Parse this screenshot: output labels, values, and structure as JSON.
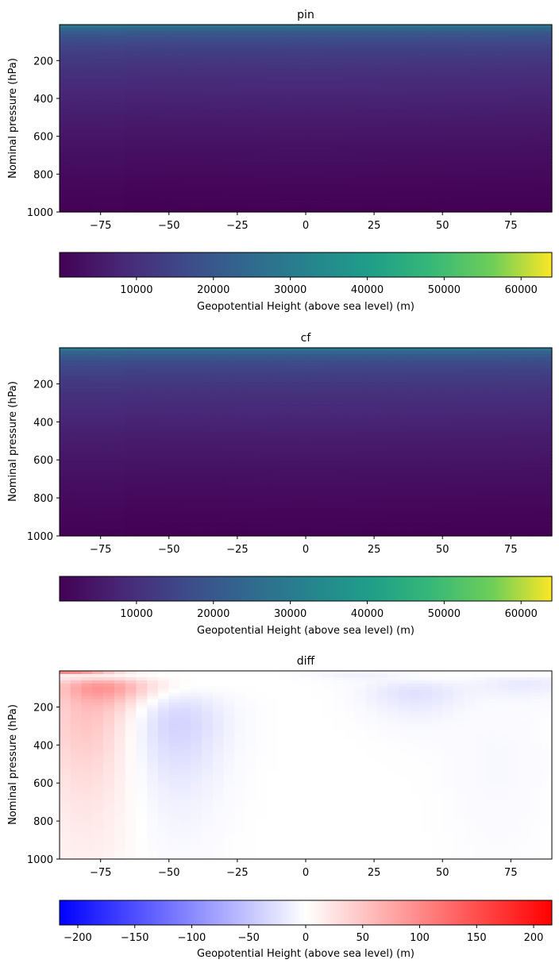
{
  "chart_data": [
    {
      "type": "heatmap",
      "title": "pin",
      "xlabel": "",
      "ylabel": "Nominal pressure (hPa)",
      "xlim": [
        -90,
        90
      ],
      "ylim": [
        1000,
        10
      ],
      "y_inverted": true,
      "x_ticks": [
        "−75",
        "−50",
        "−25",
        "0",
        "25",
        "50",
        "75"
      ],
      "x_tick_values": [
        -75,
        -50,
        -25,
        0,
        25,
        50,
        75
      ],
      "y_ticks": [
        "200",
        "400",
        "600",
        "800",
        "1000"
      ],
      "y_tick_values": [
        200,
        400,
        600,
        800,
        1000
      ],
      "colormap": "viridis",
      "colorbar": {
        "label": "Geopotential Height (above sea level) (m)",
        "range": [
          0,
          64000
        ],
        "ticks": [
          "10000",
          "20000",
          "30000",
          "40000",
          "50000",
          "60000"
        ],
        "tick_values": [
          10000,
          20000,
          30000,
          40000,
          50000,
          60000
        ]
      },
      "profile": {
        "pressure_hPa": [
          10,
          30,
          50,
          100,
          200,
          400,
          600,
          800,
          1000
        ],
        "height_m": [
          31000,
          24000,
          20600,
          16200,
          11800,
          7200,
          4200,
          1900,
          100
        ]
      }
    },
    {
      "type": "heatmap",
      "title": "cf",
      "xlabel": "",
      "ylabel": "Nominal pressure (hPa)",
      "xlim": [
        -90,
        90
      ],
      "ylim": [
        1000,
        10
      ],
      "y_inverted": true,
      "x_ticks": [
        "−75",
        "−50",
        "−25",
        "0",
        "25",
        "50",
        "75"
      ],
      "x_tick_values": [
        -75,
        -50,
        -25,
        0,
        25,
        50,
        75
      ],
      "y_ticks": [
        "200",
        "400",
        "600",
        "800",
        "1000"
      ],
      "y_tick_values": [
        200,
        400,
        600,
        800,
        1000
      ],
      "colormap": "viridis",
      "colorbar": {
        "label": "Geopotential Height (above sea level) (m)",
        "range": [
          0,
          64000
        ],
        "ticks": [
          "10000",
          "20000",
          "30000",
          "40000",
          "50000",
          "60000"
        ],
        "tick_values": [
          10000,
          20000,
          30000,
          40000,
          50000,
          60000
        ]
      },
      "profile": {
        "pressure_hPa": [
          10,
          30,
          50,
          100,
          200,
          400,
          600,
          800,
          1000
        ],
        "height_m": [
          31000,
          24000,
          20600,
          16200,
          11800,
          7200,
          4200,
          1900,
          100
        ]
      }
    },
    {
      "type": "heatmap",
      "title": "diff",
      "xlabel": "",
      "ylabel": "Nominal pressure (hPa)",
      "xlim": [
        -90,
        90
      ],
      "ylim": [
        1000,
        10
      ],
      "y_inverted": true,
      "x_ticks": [
        "−75",
        "−50",
        "−25",
        "0",
        "25",
        "50",
        "75"
      ],
      "x_tick_values": [
        -75,
        -50,
        -25,
        0,
        25,
        50,
        75
      ],
      "y_ticks": [
        "200",
        "400",
        "600",
        "800",
        "1000"
      ],
      "y_tick_values": [
        200,
        400,
        600,
        800,
        1000
      ],
      "colormap": "bwr",
      "colorbar": {
        "label": "Geopotential Height (above sea level) (m)",
        "range": [
          -216,
          216
        ],
        "ticks": [
          "−200",
          "−150",
          "−100",
          "−50",
          "0",
          "50",
          "100",
          "150",
          "200"
        ],
        "tick_values": [
          -200,
          -150,
          -100,
          -50,
          0,
          50,
          100,
          150,
          200
        ]
      },
      "features": [
        {
          "lat": -88,
          "p": 10,
          "value": 216
        },
        {
          "lat": -75,
          "p": 100,
          "value": 90
        },
        {
          "lat": -80,
          "p": 300,
          "value": 40
        },
        {
          "lat": -80,
          "p": 700,
          "value": 15
        },
        {
          "lat": -48,
          "p": 250,
          "value": -30
        },
        {
          "lat": -48,
          "p": 450,
          "value": -15
        },
        {
          "lat": 40,
          "p": 130,
          "value": -25
        },
        {
          "lat": 80,
          "p": 80,
          "value": -18
        },
        {
          "lat": 20,
          "p": 30,
          "value": -12
        },
        {
          "lat": 70,
          "p": 500,
          "value": -6
        }
      ]
    }
  ]
}
